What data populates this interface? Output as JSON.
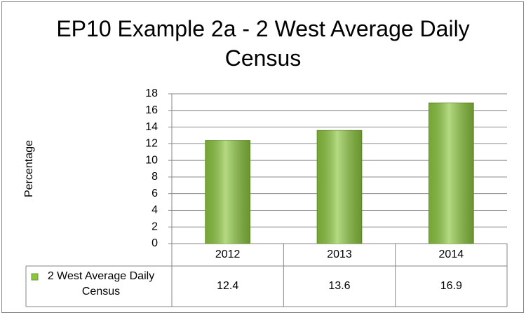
{
  "chart_data": {
    "type": "bar",
    "title": "EP10 Example 2a - 2 West Average Daily Census",
    "y_label": "Percentage",
    "categories": [
      "2012",
      "2013",
      "2014"
    ],
    "series": [
      {
        "name": "2 West Average Daily Census",
        "color": "#8cc63f",
        "values": [
          12.4,
          13.6,
          16.9
        ]
      }
    ],
    "ylim": [
      0,
      18
    ],
    "yticks": [
      0,
      2,
      4,
      6,
      8,
      10,
      12,
      14,
      16,
      18
    ],
    "grid": true,
    "data_table": true
  }
}
